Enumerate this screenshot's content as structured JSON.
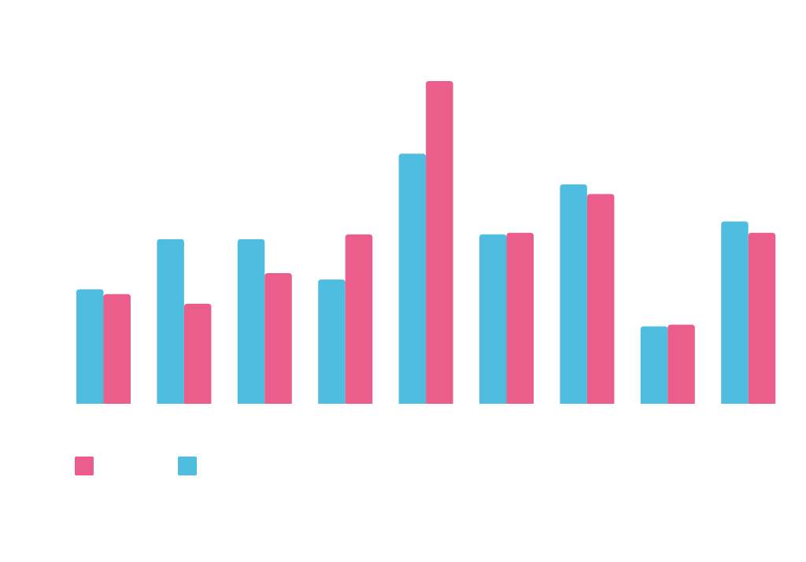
{
  "chart_data": {
    "type": "bar",
    "title": "",
    "xlabel": "",
    "ylabel": "",
    "categories": [
      "",
      "",
      "",
      "",
      "",
      "",
      "",
      "",
      ""
    ],
    "ylim": [
      0,
      100
    ],
    "grid": false,
    "legend": "bottom-left",
    "series": [
      {
        "color": "#4FBDE0",
        "values": [
          35.5,
          51,
          51,
          38.5,
          77.5,
          52.5,
          68,
          24,
          56.5
        ]
      },
      {
        "color": "#EB5E8C",
        "values": [
          34,
          31,
          40.5,
          52.5,
          100,
          53,
          65,
          24.5,
          53
        ]
      }
    ]
  }
}
